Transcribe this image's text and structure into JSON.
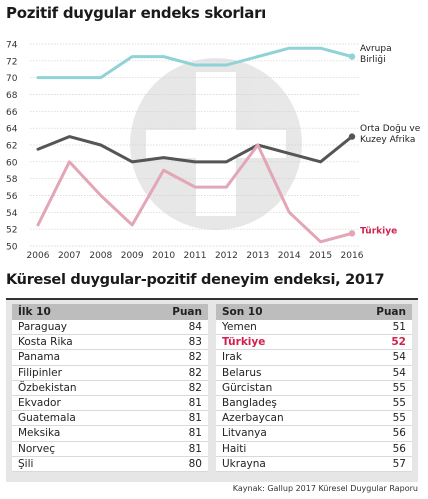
{
  "title": "Pozitif duygular endeks skorları",
  "chart_data": {
    "type": "line",
    "x": [
      2006,
      2007,
      2008,
      2009,
      2010,
      2011,
      2012,
      2013,
      2014,
      2015,
      2016
    ],
    "ylim": [
      50,
      74
    ],
    "yticks": [
      50,
      52,
      54,
      56,
      58,
      60,
      62,
      64,
      66,
      68,
      70,
      72,
      74
    ],
    "grid": true,
    "series": [
      {
        "name": "Avrupa Birliği",
        "label_lines": [
          "Avrupa",
          "Birliği"
        ],
        "color": "#8fd3d7",
        "values": [
          70,
          70,
          70,
          72.5,
          72.5,
          71.5,
          71.5,
          72.5,
          73.5,
          73.5,
          72.5
        ]
      },
      {
        "name": "Orta Doğu ve Kuzey Afrika",
        "label_lines": [
          "Orta Doğu ve",
          "Kuzey Afrika"
        ],
        "color": "#555555",
        "values": [
          61.5,
          63,
          62,
          60,
          60.5,
          60,
          60,
          62,
          61,
          60,
          63
        ]
      },
      {
        "name": "Türkiye",
        "label_lines": [
          "Türkiye"
        ],
        "color": "#e2a6b6",
        "values": [
          52.5,
          60,
          56,
          52.5,
          59,
          57,
          57,
          62,
          54,
          50.5,
          51.5
        ]
      }
    ]
  },
  "section_title": "Küresel duygular-pozitif deneyim endeksi, 2017",
  "top10": {
    "header": "İlk 10",
    "value_header": "Puan",
    "rows": [
      {
        "country": "Paraguay",
        "score": "84"
      },
      {
        "country": "Kosta Rika",
        "score": "83"
      },
      {
        "country": "Panama",
        "score": "82"
      },
      {
        "country": "Filipinler",
        "score": "82"
      },
      {
        "country": "Özbekistan",
        "score": "82"
      },
      {
        "country": "Ekvador",
        "score": "81"
      },
      {
        "country": "Guatemala",
        "score": "81"
      },
      {
        "country": "Meksika",
        "score": "81"
      },
      {
        "country": "Norveç",
        "score": "81"
      },
      {
        "country": "Şili",
        "score": "80"
      }
    ]
  },
  "bottom10": {
    "header": "Son 10",
    "value_header": "Puan",
    "highlight_color": "#d4204d",
    "rows": [
      {
        "country": "Yemen",
        "score": "51"
      },
      {
        "country": "Türkiye",
        "score": "52",
        "highlight": true
      },
      {
        "country": "Irak",
        "score": "54"
      },
      {
        "country": "Belarus",
        "score": "54"
      },
      {
        "country": "Gürcistan",
        "score": "55"
      },
      {
        "country": "Bangladeş",
        "score": "55"
      },
      {
        "country": "Azerbaycan",
        "score": "55"
      },
      {
        "country": "Litvanya",
        "score": "56"
      },
      {
        "country": "Haiti",
        "score": "56"
      },
      {
        "country": "Ukrayna",
        "score": "57"
      }
    ]
  },
  "source": "Kaynak: Gallup 2017 Küresel Duygular Raporu"
}
